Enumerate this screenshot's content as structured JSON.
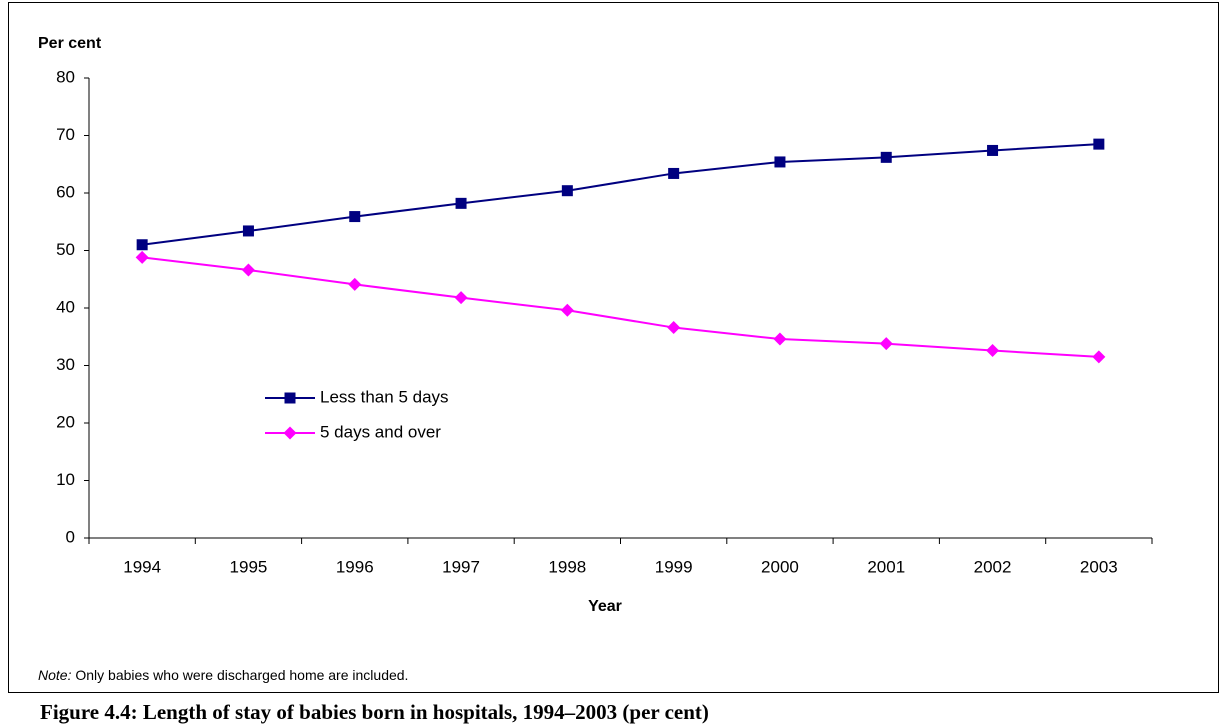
{
  "chart_data": {
    "type": "line",
    "y_axis_title": "Per cent",
    "x_axis_title": "Year",
    "categories": [
      "1994",
      "1995",
      "1996",
      "1997",
      "1998",
      "1999",
      "2000",
      "2001",
      "2002",
      "2003"
    ],
    "series": [
      {
        "name": "Less than 5 days",
        "color": "#000080",
        "marker": "square",
        "values": [
          51.0,
          53.4,
          55.9,
          58.2,
          60.4,
          63.4,
          65.4,
          66.2,
          67.4,
          68.5
        ]
      },
      {
        "name": "5 days and over",
        "color": "#ff00ff",
        "marker": "diamond",
        "values": [
          48.8,
          46.6,
          44.1,
          41.8,
          39.6,
          36.6,
          34.6,
          33.8,
          32.6,
          31.5
        ]
      }
    ],
    "ylim": [
      0,
      80
    ],
    "yticks": [
      0,
      10,
      20,
      30,
      40,
      50,
      60,
      70,
      80
    ],
    "legend": "center-left",
    "note_label": "Note:",
    "note": "Only babies who were discharged home are included.",
    "caption": "Figure 4.4: Length of stay of babies born in hospitals, 1994–2003 (per cent)"
  }
}
